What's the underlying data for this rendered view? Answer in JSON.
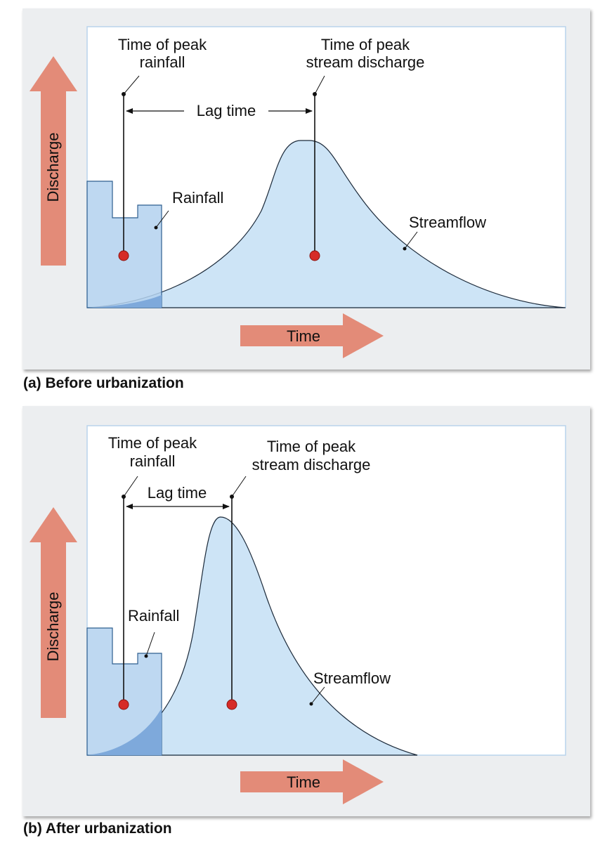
{
  "colors": {
    "panel_bg": "#eceef0",
    "plot_bg": "#ffffff",
    "plot_border": "#b9d4ec",
    "streamflow_fill": "#cde4f6",
    "rainfall_fill": "#b3d1ee",
    "overlap_fill": "#7ea9db",
    "arrow_fill": "#e38b78",
    "peak_dot": "#d62b27"
  },
  "icons": [
    "discharge-up-arrow-icon",
    "time-right-arrow-icon",
    "peak-dot-icon"
  ],
  "panel_a": {
    "caption": "(a) Before urbanization",
    "axis_y": "Discharge",
    "axis_x": "Time",
    "label_peak_rainfall": [
      "Time of peak",
      "rainfall"
    ],
    "label_peak_discharge": [
      "Time of peak",
      "stream discharge"
    ],
    "label_lag": "Lag time",
    "label_rainfall": "Rainfall",
    "label_streamflow": "Streamflow"
  },
  "panel_b": {
    "caption": "(b) After urbanization",
    "axis_y": "Discharge",
    "axis_x": "Time",
    "label_peak_rainfall": [
      "Time of peak",
      "rainfall"
    ],
    "label_peak_discharge": [
      "Time of peak",
      "stream discharge"
    ],
    "label_lag": "Lag time",
    "label_rainfall": "Rainfall",
    "label_streamflow": "Streamflow"
  }
}
